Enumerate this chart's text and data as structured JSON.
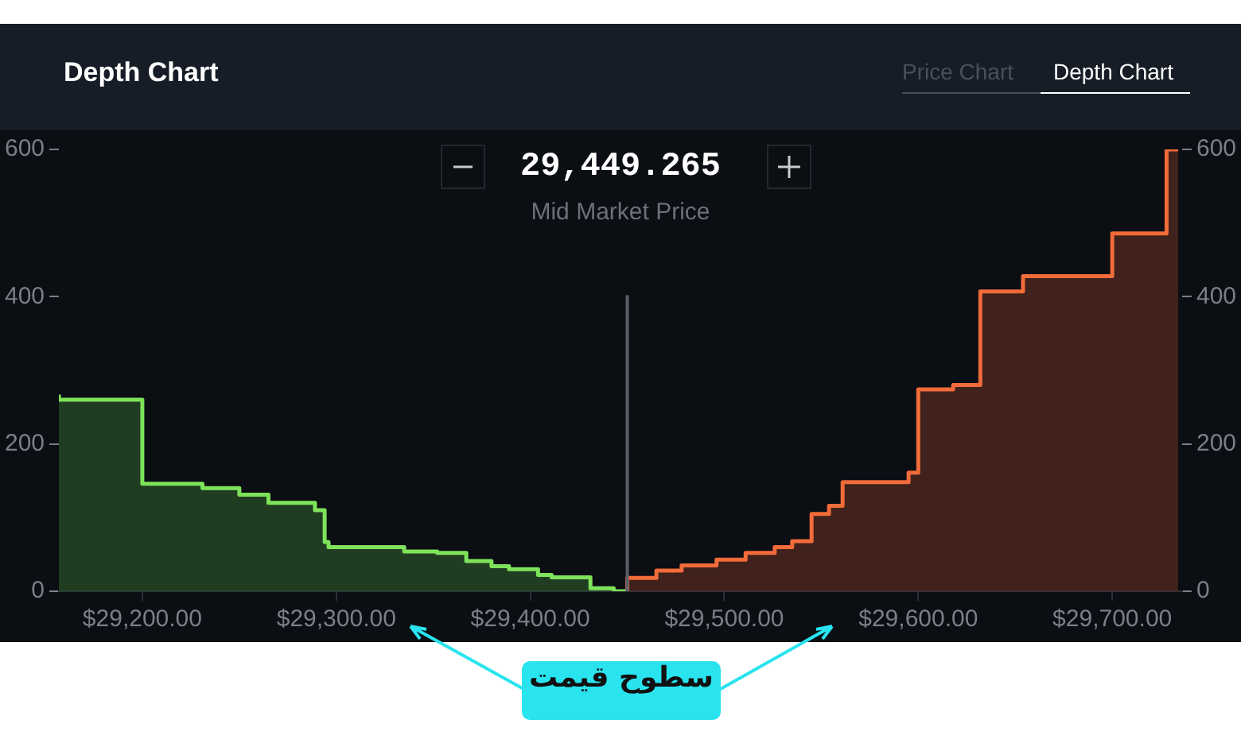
{
  "chart_data": {
    "type": "step",
    "title": "Depth Chart",
    "xlim": [
      29157,
      29736
    ],
    "xticks": [
      {
        "value": 29200,
        "label": "$29,200.00"
      },
      {
        "value": 29300,
        "label": "$29,300.00"
      },
      {
        "value": 29400,
        "label": "$29,400.00"
      },
      {
        "value": 29500,
        "label": "$29,500.00"
      },
      {
        "value": 29600,
        "label": "$29,600.00"
      },
      {
        "value": 29700,
        "label": "$29,700.00"
      }
    ],
    "ylim": [
      0,
      600
    ],
    "yticks": [
      0,
      200,
      400,
      600
    ],
    "y2lim": [
      0,
      600
    ],
    "y2ticks": [
      0,
      200,
      400,
      600
    ],
    "series": [
      {
        "color": "#7ee35a",
        "x": [
          29157,
          29200,
          29231,
          29250,
          29265,
          29289,
          29294,
          29296,
          29335,
          29352,
          29367,
          29380,
          29389,
          29404,
          29411,
          29431,
          29443,
          29449
        ],
        "values": [
          267,
          260,
          146,
          140,
          131,
          120,
          110,
          67,
          60,
          54,
          52,
          41,
          34,
          30,
          22,
          19,
          4,
          0
        ]
      },
      {
        "color": "#f26b3a",
        "x": [
          29450,
          29465,
          29478,
          29496,
          29511,
          29526,
          29535,
          29545,
          29554,
          29561,
          29595,
          29600,
          29618,
          29632,
          29654,
          29700,
          29728,
          29734
        ],
        "values": [
          0,
          18,
          28,
          35,
          43,
          52,
          60,
          68,
          105,
          116,
          148,
          161,
          274,
          280,
          407,
          428,
          486,
          600
        ]
      }
    ],
    "ref_lines": [
      {
        "axis": "x",
        "value": 29450,
        "color": "#5a5f66"
      }
    ],
    "annotations": [
      "29,449.265",
      "Mid Market Price",
      "Price Chart",
      "Depth Chart",
      "سطوح قیمت"
    ],
    "legend": false,
    "grid": false
  }
}
